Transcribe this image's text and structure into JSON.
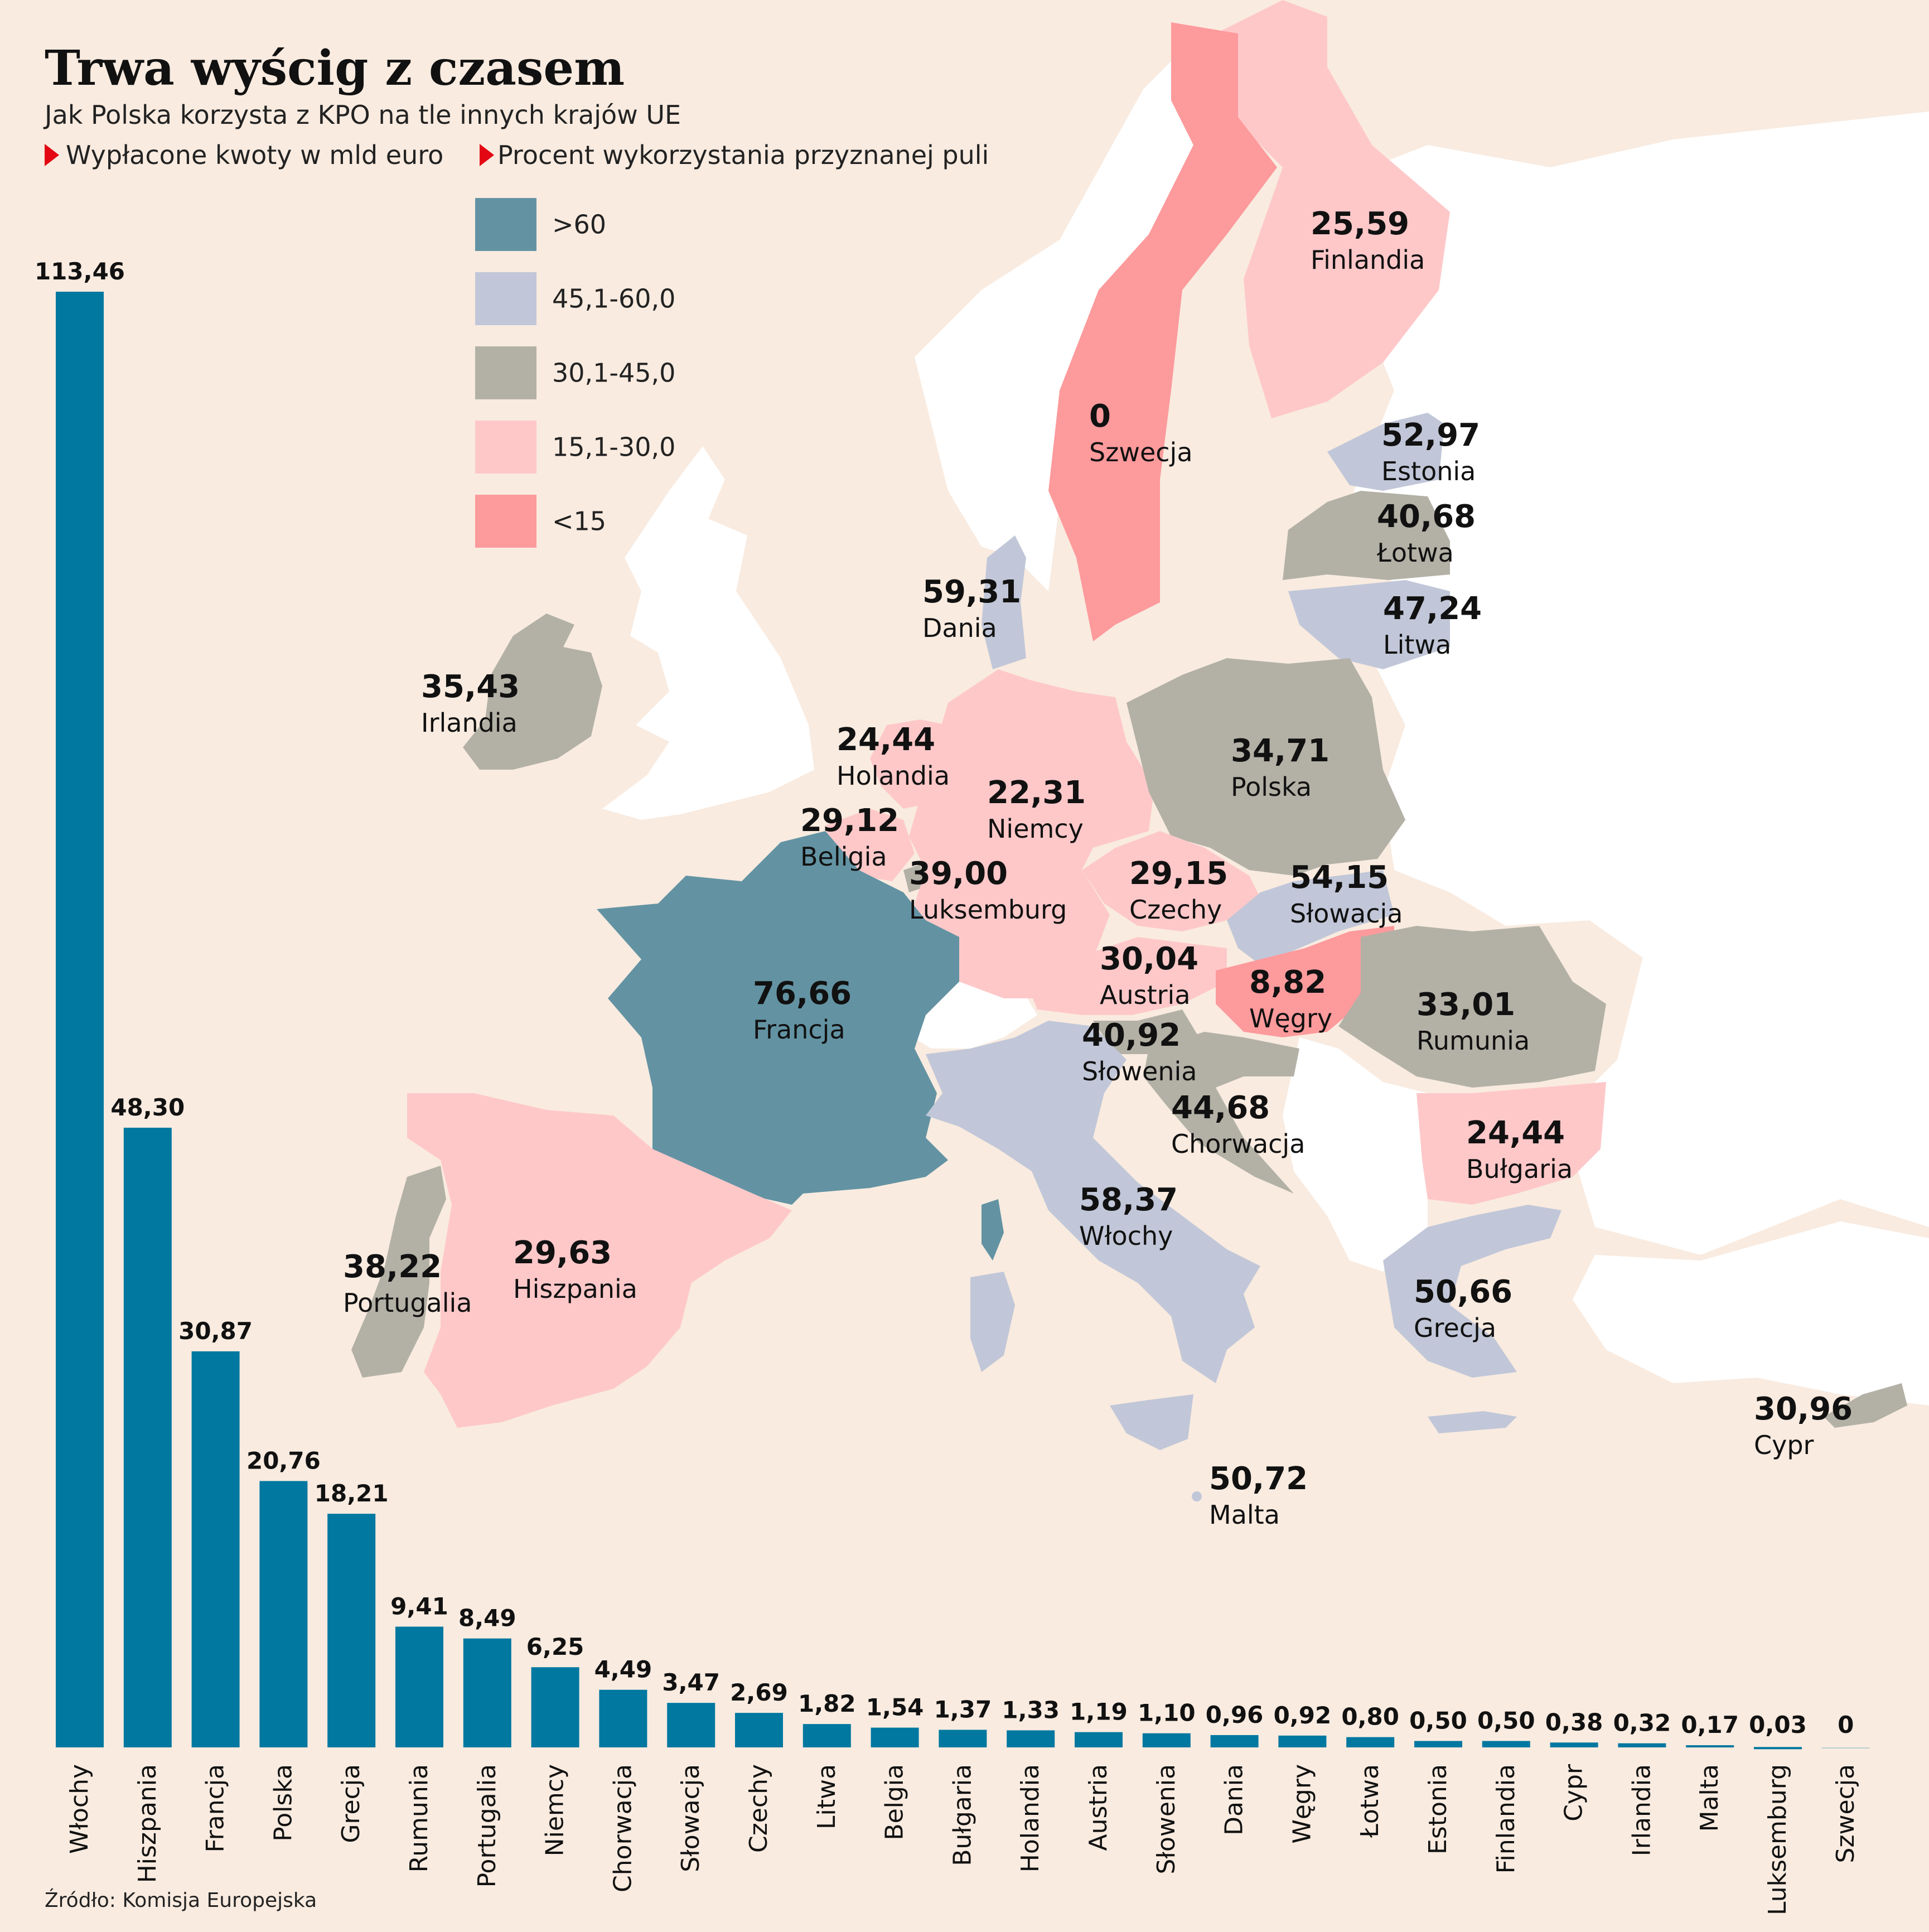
{
  "header": {
    "title": "Trwa wyścig z czasem",
    "subtitle": "Jak Polska korzysta z KPO na tle innych krajów UE",
    "legend_bars": "Wypłacone kwoty w mld euro",
    "legend_map": "Procent wykorzystania przyznanej puli"
  },
  "map_legend": [
    {
      "label": ">60",
      "color": "#6393a3"
    },
    {
      "label": "45,1-60,0",
      "color": "#c1c7d8"
    },
    {
      "label": "30,1-45,0",
      "color": "#b3b1a6"
    },
    {
      "label": "15,1-30,0",
      "color": "#fec8c9"
    },
    {
      "label": "<15",
      "color": "#fd9a9c"
    }
  ],
  "map_labels": [
    {
      "value": "25,59",
      "name": "Finlandia"
    },
    {
      "value": "0",
      "name": "Szwecja"
    },
    {
      "value": "52,97",
      "name": "Estonia"
    },
    {
      "value": "40,68",
      "name": "Łotwa"
    },
    {
      "value": "47,24",
      "name": "Litwa"
    },
    {
      "value": "59,31",
      "name": "Dania"
    },
    {
      "value": "35,43",
      "name": "Irlandia"
    },
    {
      "value": "24,44",
      "name": "Holandia"
    },
    {
      "value": "34,71",
      "name": "Polska"
    },
    {
      "value": "22,31",
      "name": "Niemcy"
    },
    {
      "value": "29,12",
      "name": "Beligia"
    },
    {
      "value": "39,00",
      "name": "Luksemburg"
    },
    {
      "value": "29,15",
      "name": "Czechy"
    },
    {
      "value": "54,15",
      "name": "Słowacja"
    },
    {
      "value": "30,04",
      "name": "Austria"
    },
    {
      "value": "8,82",
      "name": "Węgry"
    },
    {
      "value": "33,01",
      "name": "Rumunia"
    },
    {
      "value": "76,66",
      "name": "Francja"
    },
    {
      "value": "40,92",
      "name": "Słowenia"
    },
    {
      "value": "44,68",
      "name": "Chorwacja"
    },
    {
      "value": "24,44",
      "name": "Bułgaria"
    },
    {
      "value": "58,37",
      "name": "Włochy"
    },
    {
      "value": "38,22",
      "name": "Portugalia"
    },
    {
      "value": "29,63",
      "name": "Hiszpania"
    },
    {
      "value": "50,66",
      "name": "Grecja"
    },
    {
      "value": "30,96",
      "name": "Cypr"
    },
    {
      "value": "50,72",
      "name": "Malta"
    }
  ],
  "chart_data": {
    "type": "bar",
    "title": "",
    "xlabel": "",
    "ylabel": "",
    "ylim": [
      0,
      113.46
    ],
    "bar_color": "#0078a0",
    "categories": [
      "Włochy",
      "Hiszpania",
      "Francja",
      "Polska",
      "Grecja",
      "Rumunia",
      "Portugalia",
      "Niemcy",
      "Chorwacja",
      "Słowacja",
      "Czechy",
      "Litwa",
      "Belgia",
      "Bułgaria",
      "Holandia",
      "Austria",
      "Słowenia",
      "Dania",
      "Węgry",
      "Łotwa",
      "Estonia",
      "Finlandia",
      "Cypr",
      "Irlandia",
      "Malta",
      "Luksemburg",
      "Szwecja"
    ],
    "values": [
      113.46,
      48.3,
      30.87,
      20.76,
      18.21,
      9.41,
      8.49,
      6.25,
      4.49,
      3.47,
      2.69,
      1.82,
      1.54,
      1.37,
      1.33,
      1.19,
      1.1,
      0.96,
      0.92,
      0.8,
      0.5,
      0.5,
      0.38,
      0.32,
      0.17,
      0.03,
      0
    ],
    "value_labels": [
      "113,46",
      "48,30",
      "30,87",
      "20,76",
      "18,21",
      "9,41",
      "8,49",
      "6,25",
      "4,49",
      "3,47",
      "2,69",
      "1,82",
      "1,54",
      "1,37",
      "1,33",
      "1,19",
      "1,10",
      "0,96",
      "0,92",
      "0,80",
      "0,50",
      "0,50",
      "0,38",
      "0,32",
      "0,17",
      "0,03",
      "0"
    ]
  },
  "footer": {
    "source": "Źródło: Komisja Europejska"
  }
}
